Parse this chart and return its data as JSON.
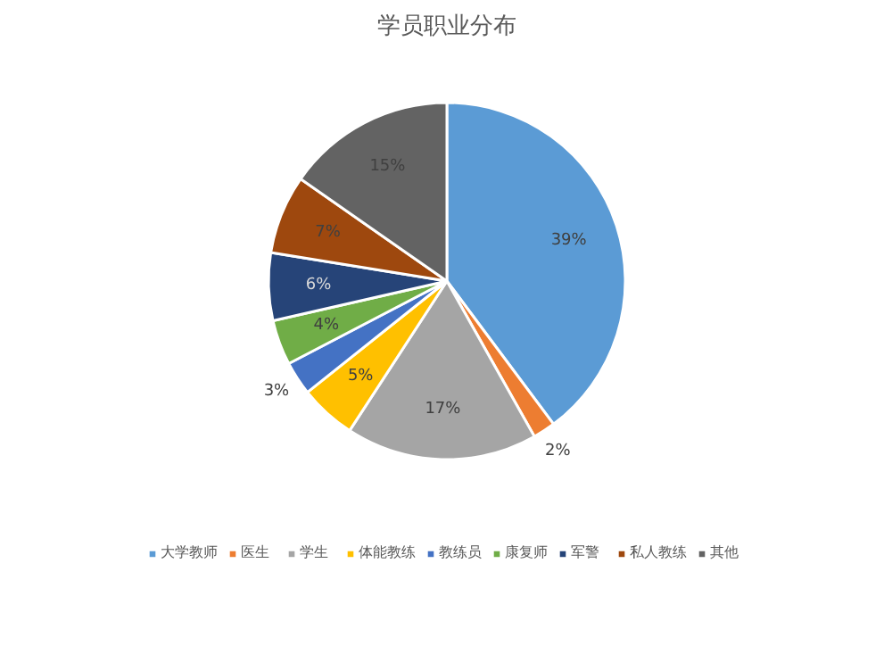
{
  "chart_data": {
    "type": "pie",
    "title": "学员职业分布",
    "categories": [
      "大学教师",
      "医生",
      "学生",
      "体能教练",
      "教练员",
      "康复师",
      "军警",
      "私人教练",
      "其他"
    ],
    "values": [
      39,
      2,
      17,
      5,
      3,
      4,
      6,
      7,
      15
    ],
    "value_labels": [
      "39%",
      "2%",
      "17%",
      "5%",
      "3%",
      "4%",
      "6%",
      "7%",
      "15%"
    ],
    "colors": [
      "#5b9bd5",
      "#ed7d31",
      "#a5a5a5",
      "#ffc000",
      "#4472c4",
      "#70ad47",
      "#264478",
      "#9e480e",
      "#636363"
    ],
    "legend": "bottom"
  }
}
